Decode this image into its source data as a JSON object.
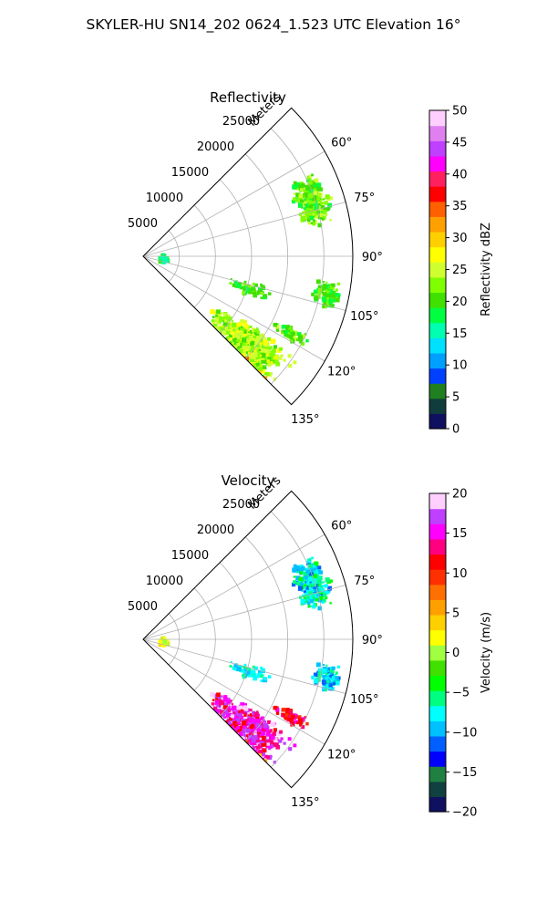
{
  "figure": {
    "suptitle": "SKYLER-HU  SN14_202  0624_1.523 UTC Elevation 16°"
  },
  "chart_data": [
    {
      "type": "heatmap",
      "projection": "polar-sector",
      "title": "Reflectivity",
      "radial_label": "Meters",
      "radial_ticks": [
        5000,
        10000,
        15000,
        20000,
        25000
      ],
      "radial_range": [
        0,
        29000
      ],
      "azimuth_ticks": [
        "60°",
        "75°",
        "90°",
        "105°",
        "120°",
        "135°"
      ],
      "azimuth_range_deg": [
        45,
        135
      ],
      "grid": true,
      "colorbar": {
        "label": "Reflectivity dBZ",
        "range": [
          0,
          50
        ],
        "ticks": [
          "0",
          "5",
          "10",
          "15",
          "20",
          "25",
          "30",
          "35",
          "40",
          "45",
          "50"
        ],
        "palette": [
          "#101060",
          "#103c3c",
          "#208020",
          "#0040ff",
          "#00a0ff",
          "#00e0ff",
          "#00ffb0",
          "#00ff40",
          "#40e000",
          "#80ff00",
          "#d0ff30",
          "#ffff00",
          "#ffd000",
          "#ffa000",
          "#ff6000",
          "#ff0000",
          "#ff2060",
          "#ff00ff",
          "#c040ff",
          "#e080f0",
          "#ffd0ff"
        ]
      }
    },
    {
      "type": "heatmap",
      "projection": "polar-sector",
      "title": "Velocity",
      "radial_label": "Meters",
      "radial_ticks": [
        5000,
        10000,
        15000,
        20000,
        25000
      ],
      "radial_range": [
        0,
        29000
      ],
      "azimuth_ticks": [
        "60°",
        "75°",
        "90°",
        "105°",
        "120°",
        "135°"
      ],
      "azimuth_range_deg": [
        45,
        135
      ],
      "grid": true,
      "colorbar": {
        "label": "Velocity (m/s)",
        "range": [
          -20,
          20
        ],
        "ticks": [
          "−20",
          "−15",
          "−10",
          "−5",
          "0",
          "5",
          "10",
          "15",
          "20"
        ],
        "palette": [
          "#101060",
          "#104040",
          "#208040",
          "#0000ff",
          "#0060ff",
          "#00c0ff",
          "#00ffff",
          "#00ff80",
          "#00ff00",
          "#40e000",
          "#a0ff40",
          "#ffff00",
          "#ffd000",
          "#ffa000",
          "#ff7000",
          "#ff3000",
          "#ff0000",
          "#ff0080",
          "#ff00ff",
          "#c040ff",
          "#ffd0ff"
        ]
      }
    }
  ]
}
